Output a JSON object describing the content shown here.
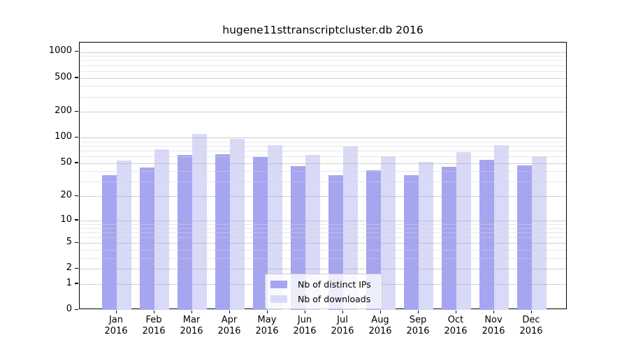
{
  "title": "hugene11sttranscriptcluster.db 2016",
  "colors": {
    "distinct_ips_bar": "#a5a5f1",
    "downloads_bar": "#d9d9f8",
    "axis": "#000000",
    "grid_major": "#aaaaaa",
    "grid_minor": "#d6d6d6",
    "legend_border": "#cccccc"
  },
  "legend": {
    "items": [
      {
        "label": "Nb of distinct IPs",
        "swatch": "distinct-ips-swatch"
      },
      {
        "label": "Nb of downloads",
        "swatch": "downloads-swatch"
      }
    ]
  },
  "chart_data": {
    "type": "bar",
    "title": "hugene11sttranscriptcluster.db 2016",
    "xlabel": "",
    "ylabel": "",
    "categories": [
      "Jan 2016",
      "Feb 2016",
      "Mar 2016",
      "Apr 2016",
      "May 2016",
      "Jun 2016",
      "Jul 2016",
      "Aug 2016",
      "Sep 2016",
      "Oct 2016",
      "Nov 2016",
      "Dec 2016"
    ],
    "series": [
      {
        "name": "Nb of distinct IPs",
        "color": "#a5a5f1",
        "values": [
          36,
          44,
          62,
          64,
          59,
          46,
          36,
          41,
          36,
          45,
          55,
          47
        ]
      },
      {
        "name": "Nb of downloads",
        "color": "#d9d9f8",
        "values": [
          54,
          73,
          110,
          96,
          81,
          62,
          79,
          60,
          52,
          68,
          81,
          60
        ]
      }
    ],
    "y_scale": "log10(value+1)",
    "y_ticks": [
      0,
      1,
      2,
      5,
      10,
      20,
      50,
      100,
      200,
      500,
      1000
    ],
    "y_minor_gridlines": [
      3,
      4,
      6,
      7,
      8,
      9,
      30,
      40,
      60,
      70,
      80,
      90,
      300,
      400,
      600,
      700,
      800,
      900
    ],
    "ylim": [
      0,
      1290
    ],
    "grid": true,
    "legend_position": "lower center"
  }
}
